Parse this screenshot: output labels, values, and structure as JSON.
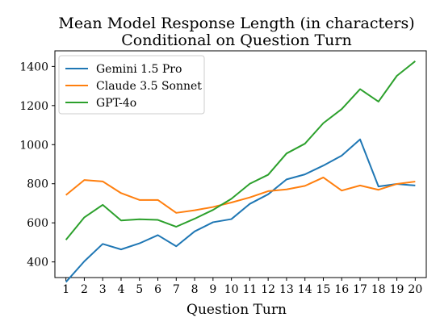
{
  "chart_data": {
    "type": "line",
    "title": "Mean Model Response Length (in characters)",
    "subtitle": "Conditional on Question Turn",
    "xlabel": "Question Turn",
    "ylabel": "",
    "x": [
      1,
      2,
      3,
      4,
      5,
      6,
      7,
      8,
      9,
      10,
      11,
      12,
      13,
      14,
      15,
      16,
      17,
      18,
      19,
      20
    ],
    "xlim": [
      0.4,
      20.6
    ],
    "ylim": [
      320,
      1480
    ],
    "yticks": [
      400,
      600,
      800,
      1000,
      1200,
      1400
    ],
    "legend_position": "top-left",
    "grid": false,
    "series": [
      {
        "name": "Gemini 1.5 Pro",
        "color": "#1f77b4",
        "values": [
          297,
          403,
          492,
          464,
          495,
          537,
          480,
          556,
          603,
          619,
          697,
          746,
          822,
          848,
          893,
          944,
          1027,
          786,
          799,
          791
        ]
      },
      {
        "name": "Claude 3.5 Sonnet",
        "color": "#ff7f0e",
        "values": [
          742,
          819,
          812,
          752,
          717,
          717,
          651,
          664,
          681,
          704,
          730,
          762,
          771,
          789,
          832,
          765,
          791,
          769,
          799,
          811
        ]
      },
      {
        "name": "GPT-4o",
        "color": "#2ca02c",
        "values": [
          513,
          628,
          692,
          612,
          618,
          615,
          580,
          621,
          666,
          723,
          800,
          846,
          955,
          1005,
          1110,
          1182,
          1284,
          1220,
          1352,
          1427
        ]
      }
    ]
  }
}
